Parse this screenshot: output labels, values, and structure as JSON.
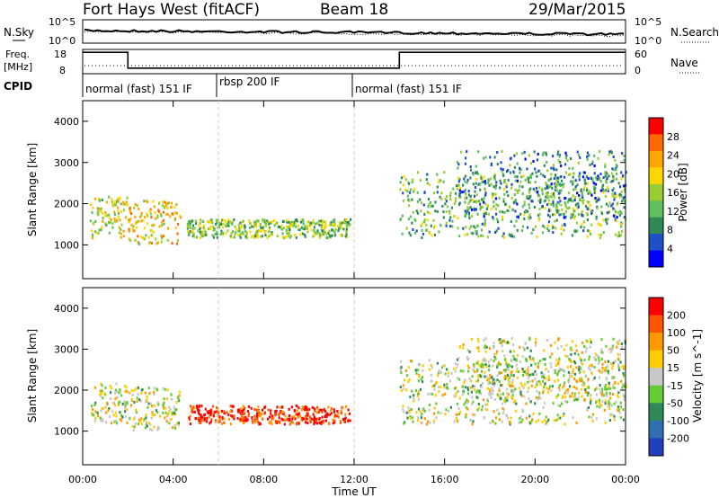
{
  "header": {
    "station": "Fort Hays West (fitACF)",
    "beam": "Beam 18",
    "date": "29/Mar/2015"
  },
  "noise_panel": {
    "left_label": "N.Sky",
    "right_label": "N.Search",
    "left_ticks": [
      "10^5",
      "10^0"
    ],
    "right_ticks": [
      "10^5",
      "10^0"
    ]
  },
  "freq_panel": {
    "left_label_1": "Freq.",
    "left_label_2": "[MHz]",
    "right_label": "Nave",
    "left_ticks": [
      "18",
      "8"
    ],
    "right_ticks": [
      "60",
      "0"
    ],
    "freq_steps": [
      {
        "start_hour": 0,
        "end_hour": 2.0,
        "mhz": 17
      },
      {
        "start_hour": 2.0,
        "end_hour": 14.0,
        "mhz": 10.5
      },
      {
        "start_hour": 14.0,
        "end_hour": 24,
        "mhz": 17
      }
    ]
  },
  "cpid": {
    "label": "CPID",
    "modes": [
      {
        "label": "normal (fast) 151 IF",
        "start_hour": 0,
        "end_hour": 6
      },
      {
        "label": "rbsp 200 IF",
        "start_hour": 6,
        "end_hour": 12
      },
      {
        "label": "normal (fast) 151 IF",
        "start_hour": 12,
        "end_hour": 24
      }
    ]
  },
  "chart_data": [
    {
      "type": "heatmap",
      "name": "power",
      "ylabel": "Slant Range [km]",
      "colorbar_label": "Power [dB]",
      "y_ticks": [
        "1000",
        "2000",
        "3000",
        "4000"
      ],
      "colorbar_ticks": [
        "4",
        "8",
        "12",
        "16",
        "20",
        "24",
        "28"
      ],
      "ylim": [
        180,
        4500
      ],
      "x_range_hours": [
        0,
        24
      ],
      "colorbar_colors": [
        "#0000ff",
        "#1e50c8",
        "#2e8b57",
        "#5fbf5f",
        "#9acd32",
        "#ffd700",
        "#ffa500",
        "#ff6a00",
        "#ff0000"
      ],
      "clusters": [
        {
          "t0": 0.3,
          "t1": 2.0,
          "r0": 1200,
          "r1": 2200,
          "level": 0.55
        },
        {
          "t0": 2.0,
          "t1": 4.3,
          "r0": 1050,
          "r1": 2100,
          "level": 0.65
        },
        {
          "t0": 4.6,
          "t1": 11.8,
          "r0": 1200,
          "r1": 1650,
          "level": 0.45
        },
        {
          "t0": 14.0,
          "t1": 24.0,
          "r0": 1200,
          "r1": 2800,
          "level": 0.4
        },
        {
          "t0": 16.5,
          "t1": 24.0,
          "r0": 1700,
          "r1": 3300,
          "level": 0.3
        }
      ]
    },
    {
      "type": "heatmap",
      "name": "velocity",
      "ylabel": "Slant Range [km]",
      "colorbar_label": "Velocity [m s^-1]",
      "y_ticks": [
        "1000",
        "2000",
        "3000",
        "4000"
      ],
      "colorbar_ticks": [
        "200",
        "100",
        "50",
        "15",
        "-15",
        "-50",
        "-100",
        "-200"
      ],
      "ylim": [
        180,
        4500
      ],
      "x_range_hours": [
        0,
        24
      ],
      "colorbar_colors": [
        "#2040c0",
        "#3070b0",
        "#2e8b57",
        "#66cc33",
        "#c8c8c8",
        "#ffcc00",
        "#ff9900",
        "#ff5500",
        "#ff0000"
      ],
      "clusters": [
        {
          "t0": 0.3,
          "t1": 2.0,
          "r0": 1200,
          "r1": 2200,
          "level": 0.5
        },
        {
          "t0": 2.0,
          "t1": 4.3,
          "r0": 1050,
          "r1": 2100,
          "level": 0.5
        },
        {
          "t0": 4.6,
          "t1": 11.8,
          "r0": 1200,
          "r1": 1650,
          "level": 0.9
        },
        {
          "t0": 14.0,
          "t1": 24.0,
          "r0": 1200,
          "r1": 2800,
          "level": 0.5
        },
        {
          "t0": 16.5,
          "t1": 24.0,
          "r0": 1700,
          "r1": 3300,
          "level": 0.5
        }
      ]
    }
  ],
  "x_axis": {
    "label": "Time UT",
    "ticks": [
      "00:00",
      "04:00",
      "08:00",
      "12:00",
      "16:00",
      "20:00",
      "00:00"
    ]
  }
}
